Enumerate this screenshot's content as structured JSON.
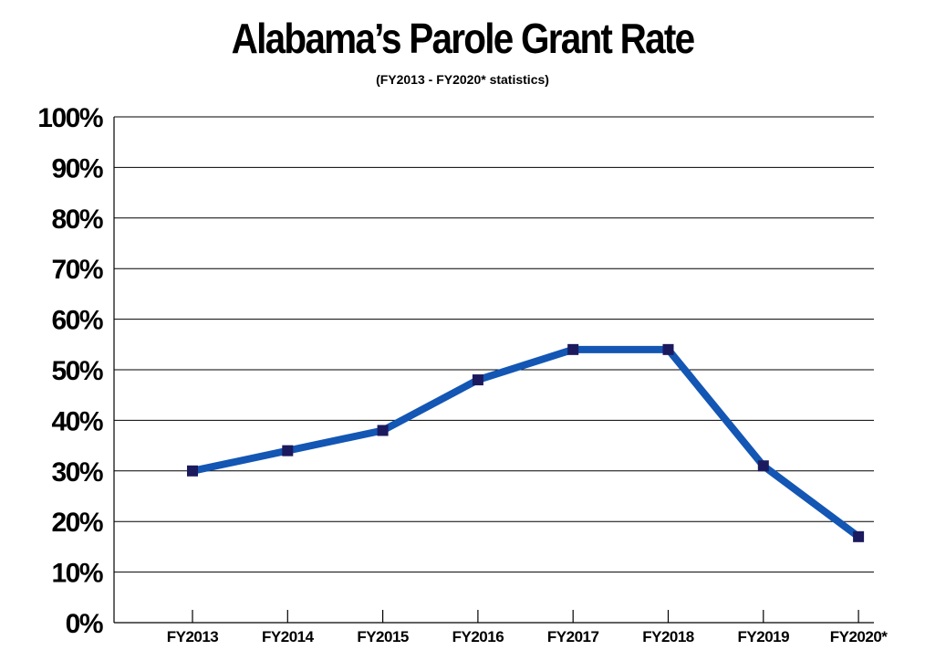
{
  "chart_data": {
    "type": "line",
    "title": "Alabama’s Parole Grant Rate",
    "subtitle": "(FY2013 - FY2020* statistics)",
    "xlabel": "",
    "ylabel": "",
    "categories": [
      "FY2013",
      "FY2014",
      "FY2015",
      "FY2016",
      "FY2017",
      "FY2018",
      "FY2019",
      "FY2020*"
    ],
    "series": [
      {
        "values": [
          30,
          34,
          38,
          48,
          54,
          54,
          31,
          17
        ]
      }
    ],
    "ylim": [
      0,
      100
    ],
    "yticks": [
      "0%",
      "10%",
      "20%",
      "30%",
      "40%",
      "50%",
      "60%",
      "70%",
      "80%",
      "90%",
      "100%"
    ],
    "grid": true,
    "legend": "none",
    "colors": {
      "line": "#1356b4",
      "marker": "#1b1a5e",
      "grid": "#000000"
    }
  }
}
